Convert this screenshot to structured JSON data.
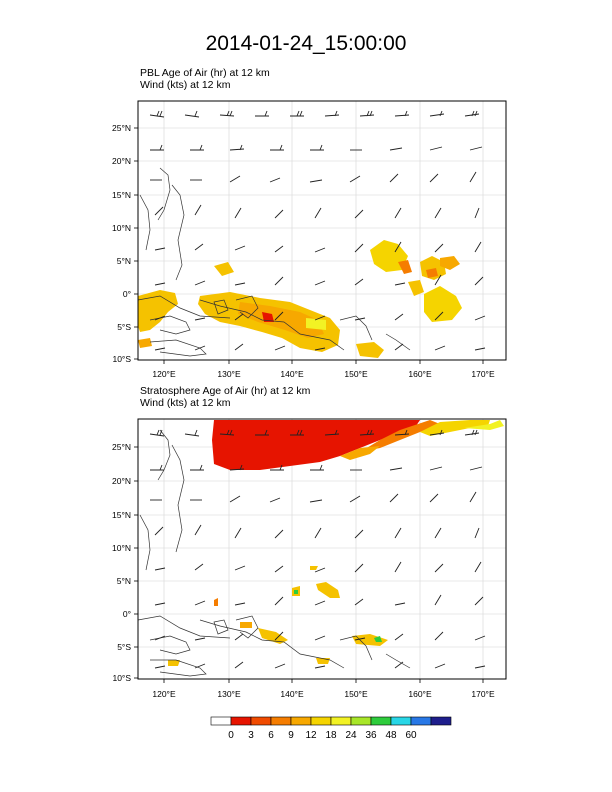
{
  "title": "2014-01-24_15:00:00",
  "panel_top": {
    "line1": "PBL Age of Air   (hr)     at   12 km",
    "line2": "Wind    (kts)     at   12 km"
  },
  "panel_bottom": {
    "line1": "Stratosphere Age of Air   (hr)     at   12 km",
    "line2": "Wind    (kts)     at   12 km"
  },
  "axes": {
    "lat_labels": [
      "25°N",
      "20°N",
      "15°N",
      "10°N",
      "5°N",
      "0°",
      "5°S",
      "10°S"
    ],
    "lat_values": [
      25,
      20,
      15,
      10,
      5,
      0,
      -5,
      -10
    ],
    "lon_labels": [
      "120°E",
      "130°E",
      "140°E",
      "150°E",
      "160°E",
      "170°E"
    ],
    "lon_values": [
      120,
      130,
      140,
      150,
      160,
      170
    ],
    "lon_range": [
      116,
      173
    ],
    "lat_range": [
      -10,
      29
    ]
  },
  "colorbar": {
    "labels": [
      "0",
      "3",
      "6",
      "9",
      "12",
      "18",
      "24",
      "36",
      "48",
      "60"
    ],
    "colors": [
      "#ffffff",
      "#e61400",
      "#f04b00",
      "#f57d00",
      "#f7a800",
      "#f5d400",
      "#f2f224",
      "#a8e628",
      "#2ecc3c",
      "#28d6e6",
      "#2878e6",
      "#1e1e8c"
    ]
  }
}
